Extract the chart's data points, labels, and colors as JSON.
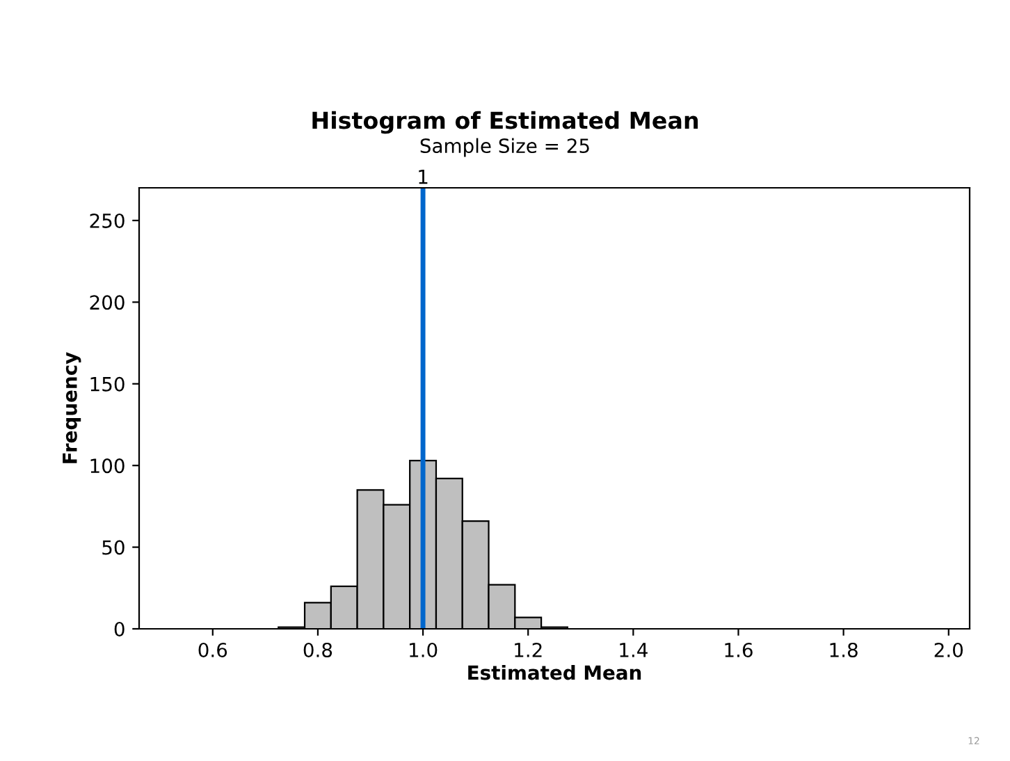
{
  "chart_data": {
    "type": "histogram",
    "title": "Histogram of Estimated Mean",
    "subtitle": "Sample Size = 25",
    "xlabel": "Estimated Mean",
    "ylabel": "Frequency",
    "bins": [
      0.725,
      0.775,
      0.825,
      0.875,
      0.925,
      0.975,
      1.025,
      1.075,
      1.125,
      1.175,
      1.225,
      1.275
    ],
    "values": [
      1,
      16,
      26,
      85,
      76,
      103,
      92,
      66,
      27,
      7,
      1
    ],
    "color": "#bfbfbf",
    "xlim": [
      0.46,
      2.04
    ],
    "xticks": [
      0.6,
      0.8,
      {
        "value": 1.0,
        "label": "1.0"
      },
      1.2,
      1.4,
      1.6,
      1.8,
      {
        "value": 2.0,
        "label": "2.0"
      }
    ],
    "ylim": [
      0,
      270
    ],
    "yticks": [
      0,
      50,
      100,
      150,
      200,
      250
    ],
    "ref_lines": [
      {
        "axis": "x",
        "value": 1,
        "label": "1",
        "color": "#0066cc"
      }
    ],
    "grid": false,
    "legend": false,
    "annotations": [
      "12"
    ]
  }
}
